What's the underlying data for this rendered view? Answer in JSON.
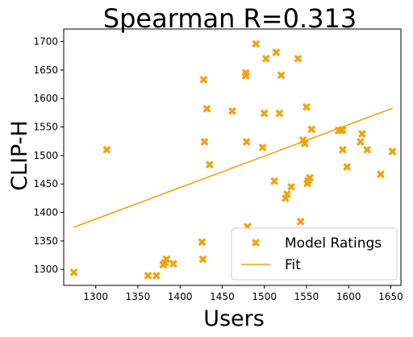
{
  "chart_data": {
    "type": "scatter",
    "title": "Spearman R=0.313",
    "xlabel": "Users",
    "ylabel": "CLIP-H",
    "xlim": [
      1262,
      1662
    ],
    "ylim": [
      1272,
      1722
    ],
    "xticks": [
      1300,
      1350,
      1400,
      1450,
      1500,
      1550,
      1600,
      1650
    ],
    "yticks": [
      1300,
      1350,
      1400,
      1450,
      1500,
      1550,
      1600,
      1650,
      1700
    ],
    "grid": false,
    "legend_position": "lower right",
    "series": [
      {
        "name": "Model Ratings",
        "marker": "X",
        "color": "#f0a30a",
        "x": [
          1274,
          1313,
          1362,
          1372,
          1380,
          1382,
          1384,
          1392,
          1426,
          1427,
          1428,
          1429,
          1432,
          1435,
          1462,
          1478,
          1478,
          1479,
          1480,
          1490,
          1498,
          1500,
          1502,
          1512,
          1514,
          1518,
          1520,
          1525,
          1527,
          1532,
          1540,
          1543,
          1546,
          1548,
          1550,
          1551,
          1552,
          1554,
          1556,
          1588,
          1591,
          1593,
          1593,
          1598,
          1614,
          1616,
          1622,
          1638,
          1652
        ],
        "y": [
          1295,
          1510,
          1289,
          1289,
          1308,
          1312,
          1318,
          1310,
          1348,
          1318,
          1633,
          1524,
          1582,
          1484,
          1578,
          1645,
          1640,
          1524,
          1375,
          1696,
          1514,
          1574,
          1670,
          1455,
          1681,
          1574,
          1641,
          1425,
          1432,
          1445,
          1670,
          1384,
          1527,
          1521,
          1585,
          1451,
          1456,
          1461,
          1546,
          1544,
          1544,
          1510,
          1545,
          1480,
          1524,
          1538,
          1510,
          1467,
          1507
        ]
      },
      {
        "name": "Fit",
        "color": "#f0a30a",
        "x": [
          1274,
          1652
        ],
        "y": [
          1374,
          1583
        ]
      }
    ]
  }
}
